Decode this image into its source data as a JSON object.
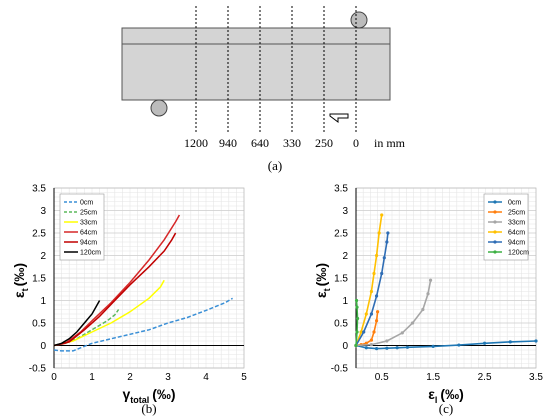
{
  "panel_a": {
    "caption": "(a)",
    "positions": [
      "1200",
      "940",
      "640",
      "330",
      "250",
      "0"
    ],
    "unit_label": "in mm"
  },
  "chart_data": [
    {
      "type": "line",
      "caption": "(b)",
      "ylabel_main": "ε",
      "ylabel_sub": "t",
      "ylabel_unit": "(‰)",
      "xlabel_main": "γ",
      "xlabel_sub": "total",
      "xlabel_unit": "(‰)",
      "xlim": [
        0,
        5
      ],
      "ylim": [
        -0.5,
        3.5
      ],
      "xticks": [
        "0",
        "1",
        "2",
        "3",
        "4",
        "5"
      ],
      "yticks": [
        "-0.5",
        "0",
        "0.5",
        "1",
        "1.5",
        "2",
        "2.5",
        "3",
        "3.5"
      ],
      "grid": true,
      "legend_position": "top-left",
      "series": [
        {
          "name": "0cm",
          "color": "#3a8fd6",
          "dash": "dashed",
          "x": [
            0,
            0.2,
            0.5,
            0.7,
            1.0,
            1.5,
            2.0,
            2.5,
            3.0,
            3.5,
            4.0,
            4.5,
            4.7
          ],
          "y": [
            -0.1,
            -0.12,
            -0.12,
            -0.05,
            0.05,
            0.15,
            0.25,
            0.35,
            0.5,
            0.62,
            0.78,
            0.95,
            1.05
          ]
        },
        {
          "name": "25cm",
          "color": "#5cb85c",
          "dash": "dashed",
          "x": [
            0,
            0.3,
            0.6,
            0.9,
            1.2,
            1.4,
            1.6,
            1.7
          ],
          "y": [
            0,
            0.05,
            0.15,
            0.3,
            0.45,
            0.55,
            0.68,
            0.8
          ]
        },
        {
          "name": "33cm",
          "color": "#ffff00",
          "dash": "solid",
          "x": [
            0,
            0.5,
            1.0,
            1.5,
            2.0,
            2.5,
            2.8,
            2.9
          ],
          "y": [
            0,
            0.1,
            0.3,
            0.5,
            0.75,
            1.05,
            1.3,
            1.45
          ]
        },
        {
          "name": "64cm",
          "color": "#d62728",
          "dash": "solid",
          "x": [
            0,
            0.3,
            0.7,
            1.0,
            1.5,
            2.0,
            2.5,
            2.9,
            3.2,
            3.3
          ],
          "y": [
            0,
            0.05,
            0.3,
            0.55,
            0.95,
            1.4,
            1.9,
            2.35,
            2.75,
            2.9
          ]
        },
        {
          "name": "94cm",
          "color": "#c00000",
          "dash": "solid",
          "x": [
            0,
            0.4,
            0.8,
            1.2,
            1.6,
            2.0,
            2.5,
            2.9,
            3.1,
            3.2
          ],
          "y": [
            0,
            0.08,
            0.35,
            0.65,
            1.0,
            1.35,
            1.75,
            2.1,
            2.35,
            2.5
          ]
        },
        {
          "name": "120cm",
          "color": "#000000",
          "dash": "solid",
          "x": [
            0,
            0.2,
            0.4,
            0.6,
            0.8,
            1.0,
            1.1,
            1.2
          ],
          "y": [
            0,
            0.05,
            0.15,
            0.3,
            0.5,
            0.7,
            0.85,
            1.0
          ]
        }
      ]
    },
    {
      "type": "line",
      "caption": "(c)",
      "ylabel_main": "ε",
      "ylabel_sub": "t",
      "ylabel_unit": "(‰)",
      "xlabel_main": "ε",
      "xlabel_sub": "l",
      "xlabel_unit": "(‰)",
      "xlim": [
        0,
        3.5
      ],
      "ylim": [
        -0.5,
        3.5
      ],
      "xticks": [
        "0.5",
        "1.5",
        "2.5",
        "3.5"
      ],
      "xtick_values": [
        0.5,
        1.5,
        2.5,
        3.5
      ],
      "yticks": [
        "-0.5",
        "0",
        "0.5",
        "1",
        "1.5",
        "2",
        "2.5",
        "3",
        "3.5"
      ],
      "grid": true,
      "legend_position": "top-right",
      "series": [
        {
          "name": "0cm",
          "color": "#1f77b4",
          "markers": true,
          "x": [
            0,
            0.2,
            0.4,
            0.6,
            0.8,
            1.0,
            1.5,
            2.0,
            2.5,
            3.0,
            3.5
          ],
          "y": [
            0,
            -0.05,
            -0.07,
            -0.06,
            -0.05,
            -0.04,
            -0.02,
            0.01,
            0.05,
            0.08,
            0.1
          ]
        },
        {
          "name": "25cm",
          "color": "#ff7f0e",
          "markers": true,
          "x": [
            0,
            0.1,
            0.2,
            0.3,
            0.35,
            0.4,
            0.42
          ],
          "y": [
            0,
            0.02,
            0.05,
            0.12,
            0.3,
            0.55,
            0.75
          ]
        },
        {
          "name": "33cm",
          "color": "#a6a6a6",
          "markers": true,
          "x": [
            0,
            0.3,
            0.6,
            0.9,
            1.1,
            1.3,
            1.4,
            1.45
          ],
          "y": [
            0,
            0.02,
            0.1,
            0.28,
            0.5,
            0.8,
            1.15,
            1.45
          ]
        },
        {
          "name": "64cm",
          "color": "#ffc000",
          "markers": true,
          "x": [
            0,
            0.1,
            0.2,
            0.3,
            0.35,
            0.4,
            0.45,
            0.5
          ],
          "y": [
            0,
            0.3,
            0.7,
            1.2,
            1.6,
            2.0,
            2.5,
            2.9
          ]
        },
        {
          "name": "94cm",
          "color": "#2f6db5",
          "markers": true,
          "x": [
            0,
            0.15,
            0.3,
            0.4,
            0.5,
            0.55,
            0.6,
            0.62
          ],
          "y": [
            0,
            0.3,
            0.7,
            1.1,
            1.6,
            1.95,
            2.3,
            2.5
          ]
        },
        {
          "name": "120cm",
          "color": "#3cb043",
          "markers": true,
          "x": [
            0,
            0.02,
            0.03,
            0.02,
            0.01
          ],
          "y": [
            0,
            0.3,
            0.6,
            0.85,
            1.0
          ]
        }
      ]
    }
  ]
}
